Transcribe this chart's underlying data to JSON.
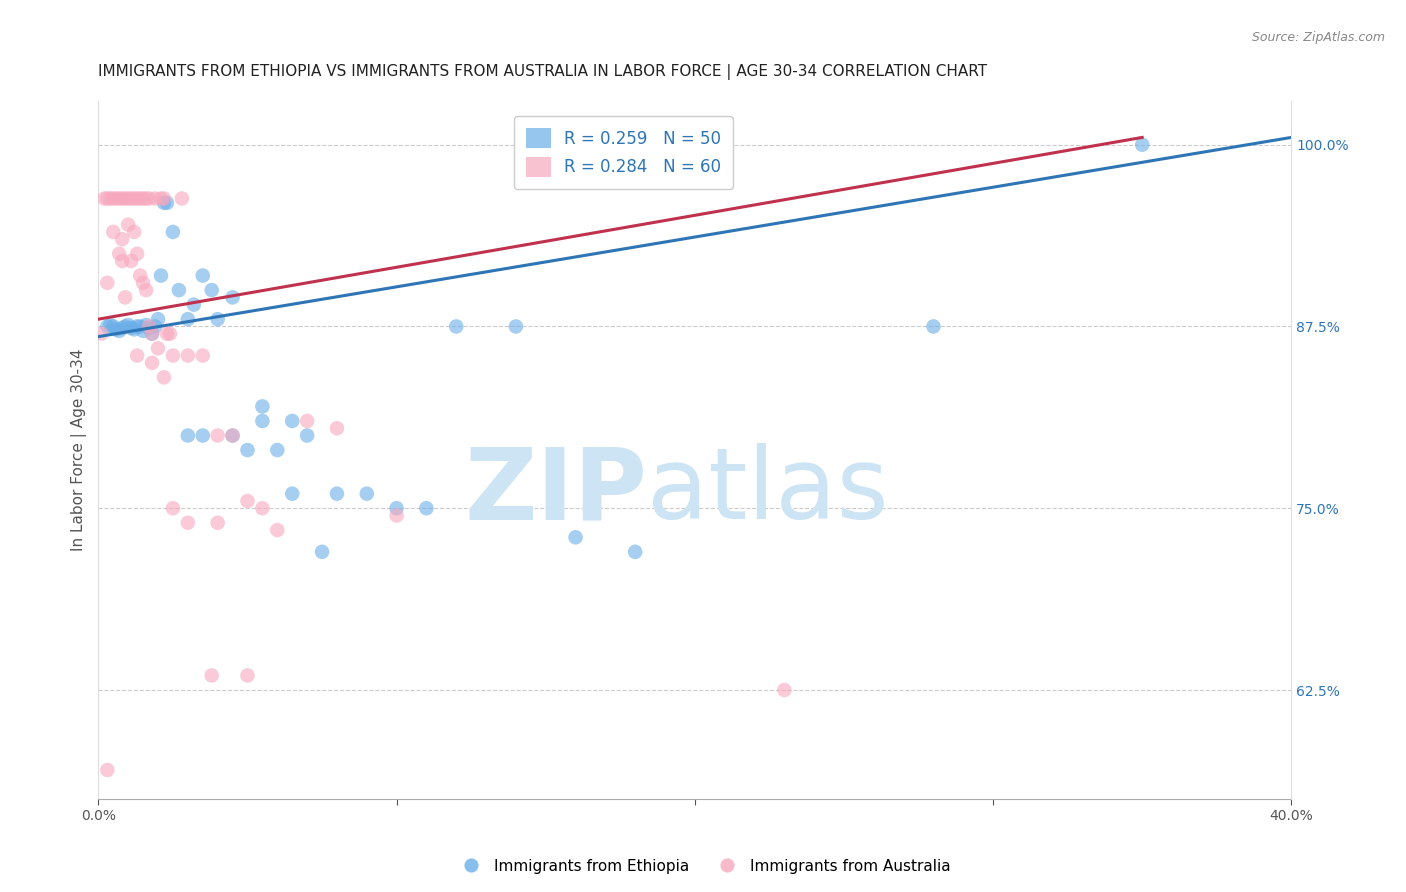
{
  "title": "IMMIGRANTS FROM ETHIOPIA VS IMMIGRANTS FROM AUSTRALIA IN LABOR FORCE | AGE 30-34 CORRELATION CHART",
  "source": "Source: ZipAtlas.com",
  "ylabel": "In Labor Force | Age 30-34",
  "xlim": [
    0.0,
    0.4
  ],
  "ylim": [
    0.55,
    1.03
  ],
  "xticks": [
    0.0,
    0.1,
    0.2,
    0.3,
    0.4
  ],
  "xticklabels": [
    "0.0%",
    "",
    "",
    "",
    "40.0%"
  ],
  "yticks_right": [
    0.625,
    0.75,
    0.875,
    1.0
  ],
  "yticklabels_right": [
    "62.5%",
    "75.0%",
    "87.5%",
    "100.0%"
  ],
  "blue_color": "#6aaee8",
  "pink_color": "#f7a8be",
  "blue_line_color": "#2E75B6",
  "pink_line_color": "#C0314E",
  "legend_blue_R": "R = 0.259",
  "legend_blue_N": "N = 50",
  "legend_pink_R": "R = 0.284",
  "legend_pink_N": "N = 60",
  "watermark_zip": "ZIP",
  "watermark_atlas": "atlas",
  "watermark_color": "#cde4f5",
  "blue_scatter_x": [
    0.003,
    0.004,
    0.005,
    0.006,
    0.007,
    0.008,
    0.009,
    0.01,
    0.011,
    0.012,
    0.013,
    0.014,
    0.015,
    0.016,
    0.017,
    0.018,
    0.019,
    0.02,
    0.021,
    0.022,
    0.023,
    0.025,
    0.027,
    0.03,
    0.032,
    0.035,
    0.038,
    0.04,
    0.045,
    0.05,
    0.055,
    0.06,
    0.065,
    0.07,
    0.08,
    0.09,
    0.1,
    0.11,
    0.12,
    0.14,
    0.16,
    0.18,
    0.045,
    0.055,
    0.065,
    0.075,
    0.03,
    0.035,
    0.28,
    0.35
  ],
  "blue_scatter_y": [
    0.875,
    0.876,
    0.875,
    0.873,
    0.872,
    0.874,
    0.875,
    0.876,
    0.874,
    0.873,
    0.875,
    0.875,
    0.872,
    0.876,
    0.874,
    0.87,
    0.875,
    0.88,
    0.91,
    0.96,
    0.96,
    0.94,
    0.9,
    0.88,
    0.89,
    0.91,
    0.9,
    0.88,
    0.895,
    0.79,
    0.82,
    0.79,
    0.81,
    0.8,
    0.76,
    0.76,
    0.75,
    0.75,
    0.875,
    0.875,
    0.73,
    0.72,
    0.8,
    0.81,
    0.76,
    0.72,
    0.8,
    0.8,
    0.875,
    1.0
  ],
  "pink_scatter_x": [
    0.002,
    0.003,
    0.004,
    0.005,
    0.005,
    0.006,
    0.007,
    0.007,
    0.008,
    0.008,
    0.009,
    0.009,
    0.01,
    0.01,
    0.011,
    0.011,
    0.012,
    0.012,
    0.013,
    0.013,
    0.014,
    0.014,
    0.015,
    0.015,
    0.016,
    0.016,
    0.017,
    0.017,
    0.018,
    0.019,
    0.02,
    0.021,
    0.022,
    0.023,
    0.024,
    0.025,
    0.028,
    0.03,
    0.035,
    0.04,
    0.045,
    0.05,
    0.06,
    0.07,
    0.08,
    0.1,
    0.022,
    0.03,
    0.04,
    0.055,
    0.001,
    0.003,
    0.008,
    0.013,
    0.018,
    0.025,
    0.038,
    0.05,
    0.23,
    0.003
  ],
  "pink_scatter_y": [
    0.963,
    0.963,
    0.963,
    0.963,
    0.94,
    0.963,
    0.963,
    0.925,
    0.963,
    0.935,
    0.963,
    0.895,
    0.963,
    0.945,
    0.963,
    0.92,
    0.963,
    0.94,
    0.963,
    0.925,
    0.963,
    0.91,
    0.963,
    0.905,
    0.963,
    0.9,
    0.963,
    0.875,
    0.87,
    0.963,
    0.86,
    0.963,
    0.963,
    0.87,
    0.87,
    0.855,
    0.963,
    0.855,
    0.855,
    0.8,
    0.8,
    0.755,
    0.735,
    0.81,
    0.805,
    0.745,
    0.84,
    0.74,
    0.74,
    0.75,
    0.87,
    0.905,
    0.92,
    0.855,
    0.85,
    0.75,
    0.635,
    0.635,
    0.625,
    0.57
  ],
  "blue_line_x0": 0.0,
  "blue_line_x1": 0.4,
  "blue_line_y0": 0.868,
  "blue_line_y1": 1.005,
  "pink_line_x0": 0.0,
  "pink_line_x1": 0.35,
  "pink_line_y0": 0.88,
  "pink_line_y1": 1.005,
  "title_fontsize": 11,
  "axis_label_fontsize": 11,
  "tick_fontsize": 10,
  "legend_fontsize": 12
}
